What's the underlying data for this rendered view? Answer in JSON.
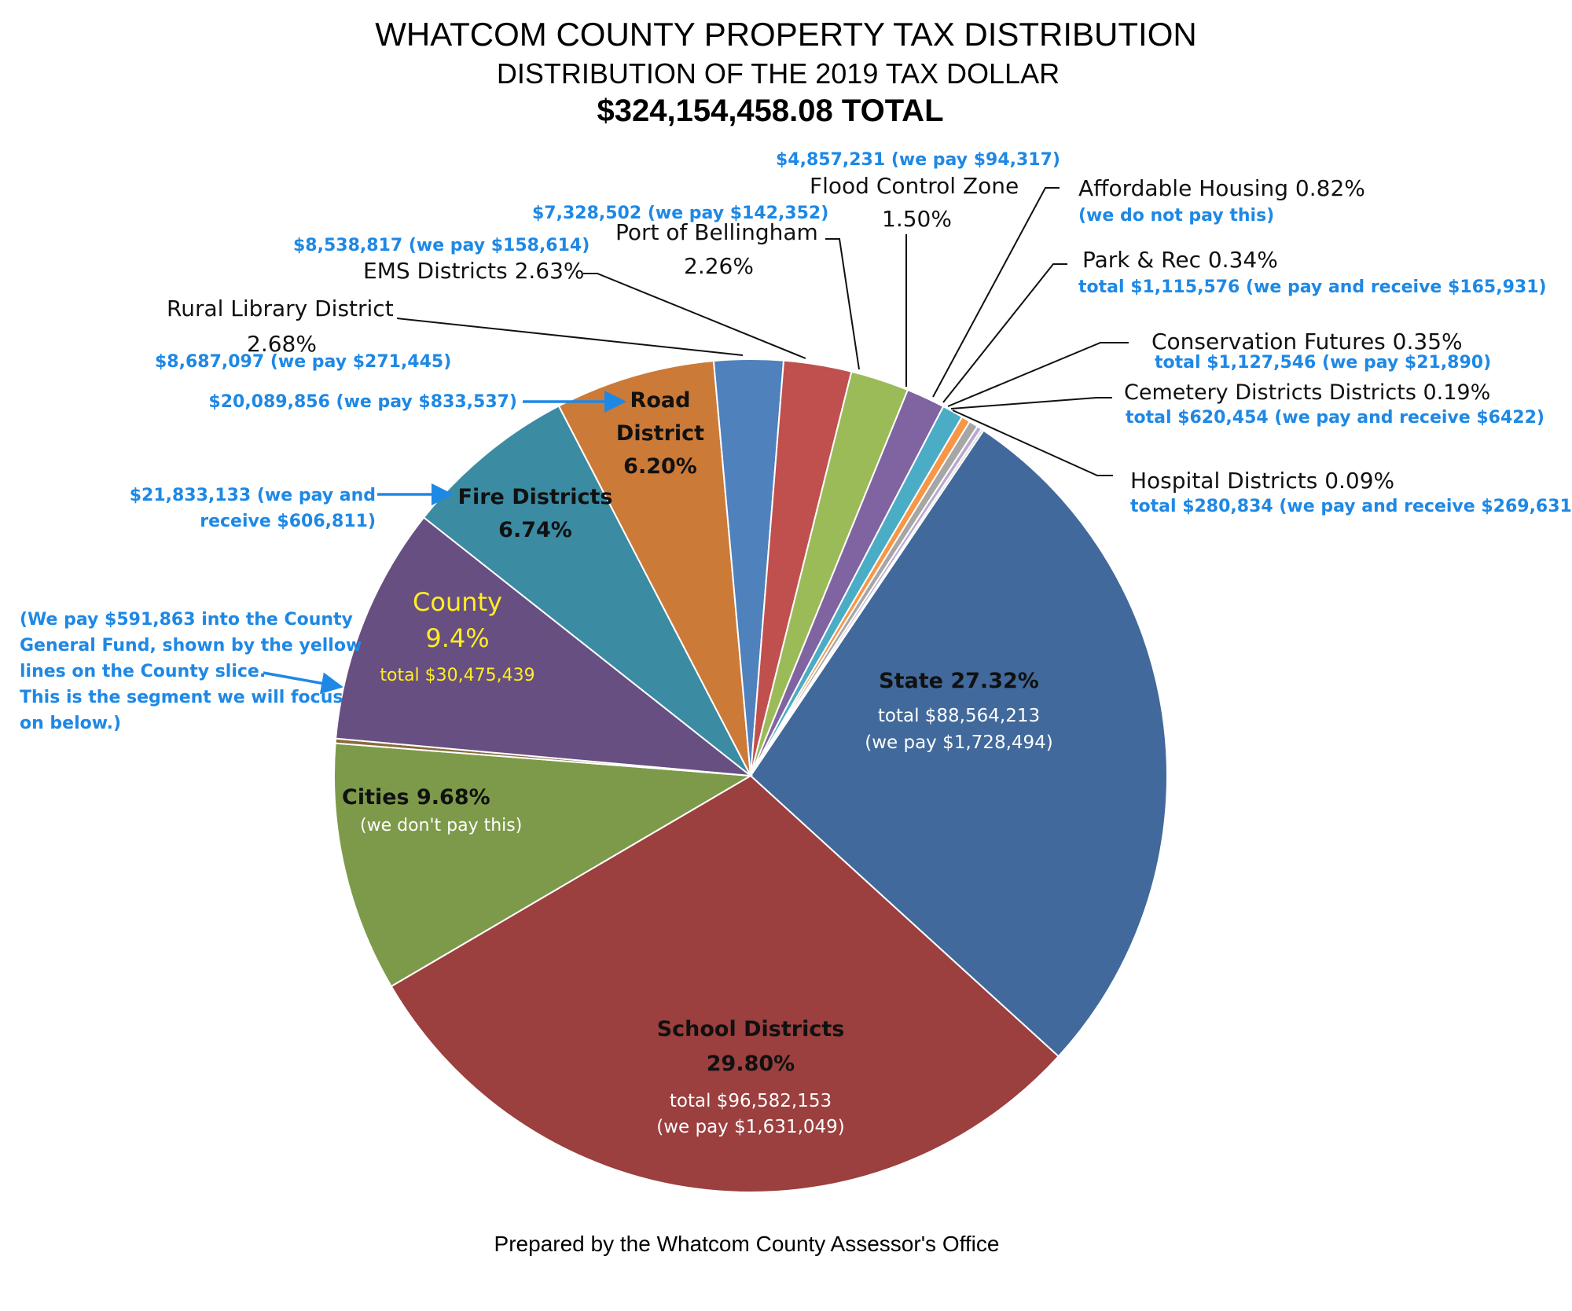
{
  "chart_data": {
    "type": "pie",
    "title": "WHATCOM COUNTY PROPERTY TAX DISTRIBUTION",
    "subtitle": "DISTRIBUTION OF THE 2019 TAX DOLLAR",
    "total_label": "$324,154,458.08 TOTAL",
    "footer": "Prepared by the Whatcom County Assessor's Office",
    "slices": [
      {
        "name": "State",
        "percent": 27.32,
        "color": "#41699b"
      },
      {
        "name": "School Districts",
        "percent": 29.8,
        "color": "#9b3f3f"
      },
      {
        "name": "Cities",
        "percent": 9.68,
        "color": "#7d9a4a"
      },
      {
        "name": "County General Fund (yellow lines)",
        "percent": 0.18,
        "color": "#8a6a3a"
      },
      {
        "name": "County",
        "percent": 9.22,
        "color": "#674f82"
      },
      {
        "name": "Fire Districts",
        "percent": 6.74,
        "color": "#3b8ba2"
      },
      {
        "name": "Road District",
        "percent": 6.2,
        "color": "#cc7a38"
      },
      {
        "name": "Rural Library District",
        "percent": 2.68,
        "color": "#4f81bd"
      },
      {
        "name": "EMS Districts",
        "percent": 2.63,
        "color": "#c0504d"
      },
      {
        "name": "Port of Bellingham",
        "percent": 2.26,
        "color": "#9bbb59"
      },
      {
        "name": "Flood Control Zone",
        "percent": 1.5,
        "color": "#8064a2"
      },
      {
        "name": "Affordable Housing",
        "percent": 0.82,
        "color": "#4bacc6"
      },
      {
        "name": "Park & Rec",
        "percent": 0.34,
        "color": "#f79646"
      },
      {
        "name": "Conservation Futures",
        "percent": 0.35,
        "color": "#a6a6a6"
      },
      {
        "name": "Cemetery Districts",
        "percent": 0.19,
        "color": "#b9a9cf"
      },
      {
        "name": "Hospital Districts",
        "percent": 0.09,
        "color": "#c8c8c8"
      }
    ]
  },
  "labels": {
    "state_name": "State 27.32%",
    "state_total": "total $88,564,213",
    "state_pay": "(we pay $1,728,494)",
    "school_name": "School Districts",
    "school_pct": "29.80%",
    "school_total": "total $96,582,153",
    "school_pay": "(we pay $1,631,049)",
    "cities_name": "Cities 9.68%",
    "cities_note": "(we don't pay this)",
    "county_name": "County",
    "county_pct": "9.4%",
    "county_total": "total $30,475,439",
    "fire_name": "Fire Districts",
    "fire_pct": "6.74%",
    "road_l1": "Road",
    "road_l2": "District",
    "road_pct": "6.20%",
    "county_note_1": "(We pay $591,863 into the County",
    "county_note_2": "General Fund, shown by the yellow",
    "county_note_3": "lines on the County slice.",
    "county_note_4": "This is the segment we will focus",
    "county_note_5": "on below.)",
    "fire_amount_1": "$21,833,133 (we pay and",
    "fire_amount_2": "receive $606,811)",
    "road_amount": "$20,089,856 (we pay $833,537)",
    "library_amount": "$8,687,097 (we pay $271,445)",
    "library_name": "Rural Library District",
    "library_pct": "2.68%",
    "ems_amount": "$8,538,817 (we pay $158,614)",
    "ems_name": "EMS Districts 2.63%",
    "port_amount": "$7,328,502 (we pay $142,352)",
    "port_name": "Port of Bellingham",
    "port_pct": "2.26%",
    "flood_amount": "$4,857,231 (we pay $94,317)",
    "flood_name": "Flood Control Zone",
    "flood_pct": "1.50%",
    "housing_name": "Affordable Housing 0.82%",
    "housing_note": "(we do not pay this)",
    "park_name": "Park & Rec 0.34%",
    "park_total": "total $1,115,576 (we pay and receive $165,931)",
    "conservation_name": "Conservation Futures 0.35%",
    "conservation_total": "total $1,127,546 (we pay $21,890)",
    "cemetery_name": "Cemetery Districts  Districts 0.19%",
    "cemetery_total": "total $620,454 (we pay and receive $6422)",
    "hospital_name": "Hospital Districts 0.09%",
    "hospital_total": "total $280,834 (we pay and receive $269,631)"
  }
}
